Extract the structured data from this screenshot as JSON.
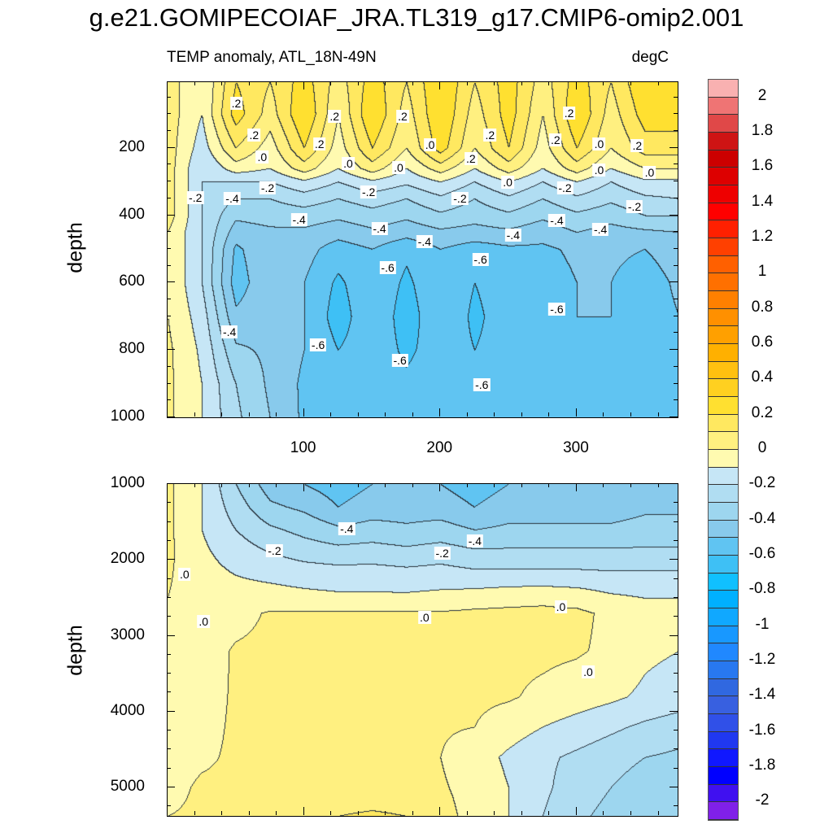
{
  "title": "g.e21.GOMIPECOIAF_JRA.TL319_g17.CMIP6-omip2.001",
  "subtitle_left": "TEMP anomaly, ATL_18N-49N",
  "subtitle_right": "degC",
  "chart_data": {
    "type": "heatmap",
    "title": "g.e21.GOMIPECOIAF_JRA.TL319_g17.CMIP6-omip2.001",
    "variable": "TEMP anomaly, ATL_18N-49N",
    "units": "degC",
    "colorbar": {
      "tick_labels": [
        "2",
        "1.8",
        "1.6",
        "1.4",
        "1.2",
        "1",
        "0.8",
        "0.6",
        "0.4",
        "0.2",
        "0",
        "-0.2",
        "-0.4",
        "-0.6",
        "-0.8",
        "-1",
        "-1.2",
        "-1.4",
        "-1.6",
        "-1.8",
        "-2"
      ],
      "range": [
        -2,
        2
      ],
      "interval": 0.1,
      "colors_top_to_bottom": [
        "#F9B1B1",
        "#EF7474",
        "#E04848",
        "#CE1414",
        "#CC0000",
        "#DD0000",
        "#EE0000",
        "#FF0000",
        "#FF2000",
        "#FF4000",
        "#FF6000",
        "#FF7000",
        "#FF8000",
        "#FF9000",
        "#FFA000",
        "#FFB000",
        "#FFC010",
        "#FFD020",
        "#FFE030",
        "#FFE860",
        "#FFF080",
        "#FFFAB0",
        "#C6E6F6",
        "#B0DDF2",
        "#9DD6EF",
        "#88CAEC",
        "#60C4F2",
        "#3EC0F5",
        "#10C0FF",
        "#00B0FF",
        "#10A8FF",
        "#1898FF",
        "#2088FF",
        "#2878F0",
        "#3068E0",
        "#3860E0",
        "#3050E8",
        "#2038F0",
        "#1018FF",
        "#0000FF",
        "#4010F0",
        "#8020E8"
      ]
    },
    "panels": [
      {
        "ylabel": "depth",
        "xlim": [
          0,
          374
        ],
        "ylim": [
          5,
          1000
        ],
        "yticks": [
          200,
          400,
          600,
          800,
          1000
        ],
        "ytick_labels": [
          "200",
          "400",
          "600",
          "800",
          "1000"
        ],
        "xticks": [
          100,
          200,
          300
        ],
        "xtick_labels": [
          "100",
          "200",
          "300"
        ],
        "x": [
          0,
          25,
          50,
          75,
          100,
          125,
          150,
          175,
          200,
          225,
          250,
          275,
          300,
          325,
          350,
          375
        ],
        "depth": [
          5,
          100,
          200,
          260,
          300,
          350,
          400,
          450,
          500,
          600,
          700,
          800,
          900,
          1000
        ],
        "values": [
          [
            0.05,
            -0.1,
            0.2,
            0.1,
            0.25,
            0.05,
            0.25,
            0.1,
            0.3,
            0.1,
            0.25,
            0.05,
            0.25,
            0.1,
            0.3,
            0.3
          ],
          [
            0.05,
            -0.1,
            0.25,
            0.05,
            0.3,
            0.0,
            0.3,
            0.05,
            0.3,
            0.05,
            0.25,
            0.0,
            0.3,
            0.05,
            0.25,
            0.25
          ],
          [
            0.05,
            -0.15,
            0.1,
            -0.05,
            0.2,
            -0.05,
            0.2,
            0.0,
            0.25,
            0.0,
            0.2,
            -0.05,
            0.2,
            0.0,
            0.15,
            0.15
          ],
          [
            0.05,
            -0.2,
            -0.05,
            -0.1,
            0.05,
            -0.1,
            0.05,
            -0.1,
            0.05,
            -0.1,
            0.05,
            -0.1,
            0.05,
            -0.1,
            0.0,
            0.0
          ],
          [
            0.05,
            -0.2,
            -0.2,
            -0.2,
            -0.12,
            -0.2,
            -0.12,
            -0.18,
            -0.1,
            -0.2,
            -0.1,
            -0.2,
            -0.1,
            -0.2,
            -0.12,
            -0.12
          ],
          [
            0.05,
            -0.2,
            -0.3,
            -0.3,
            -0.25,
            -0.3,
            -0.25,
            -0.3,
            -0.22,
            -0.3,
            -0.22,
            -0.3,
            -0.22,
            -0.28,
            -0.22,
            -0.2
          ],
          [
            0.05,
            -0.2,
            -0.38,
            -0.36,
            -0.35,
            -0.38,
            -0.34,
            -0.38,
            -0.32,
            -0.36,
            -0.32,
            -0.38,
            -0.32,
            -0.36,
            -0.3,
            -0.3
          ],
          [
            0.0,
            -0.2,
            -0.45,
            -0.42,
            -0.42,
            -0.46,
            -0.42,
            -0.46,
            -0.42,
            -0.44,
            -0.42,
            -0.46,
            -0.4,
            -0.44,
            -0.42,
            -0.4
          ],
          [
            0.0,
            -0.2,
            -0.52,
            -0.42,
            -0.46,
            -0.55,
            -0.5,
            -0.58,
            -0.5,
            -0.55,
            -0.52,
            -0.52,
            -0.48,
            -0.48,
            -0.5,
            -0.45
          ],
          [
            0.0,
            -0.2,
            -0.55,
            -0.42,
            -0.5,
            -0.62,
            -0.52,
            -0.62,
            -0.52,
            -0.6,
            -0.55,
            -0.55,
            -0.5,
            -0.5,
            -0.55,
            -0.48
          ],
          [
            0.0,
            -0.15,
            -0.48,
            -0.42,
            -0.5,
            -0.65,
            -0.52,
            -0.65,
            -0.52,
            -0.62,
            -0.55,
            -0.58,
            -0.5,
            -0.5,
            -0.55,
            -0.5
          ],
          [
            0.02,
            -0.12,
            -0.38,
            -0.42,
            -0.5,
            -0.6,
            -0.54,
            -0.62,
            -0.55,
            -0.6,
            -0.56,
            -0.56,
            -0.52,
            -0.52,
            -0.55,
            -0.5
          ],
          [
            0.02,
            -0.1,
            -0.3,
            -0.42,
            -0.52,
            -0.58,
            -0.55,
            -0.58,
            -0.55,
            -0.58,
            -0.55,
            -0.55,
            -0.52,
            -0.52,
            -0.52,
            -0.5
          ],
          [
            0.02,
            -0.1,
            -0.28,
            -0.4,
            -0.52,
            -0.55,
            -0.55,
            -0.55,
            -0.55,
            -0.56,
            -0.55,
            -0.55,
            -0.52,
            -0.52,
            -0.52,
            -0.5
          ]
        ],
        "contour_labels": [
          {
            "text": ".2",
            "x": 51,
            "d": 69
          },
          {
            "text": ".2",
            "x": 123,
            "d": 110
          },
          {
            "text": ".2",
            "x": 173,
            "d": 110
          },
          {
            "text": ".2",
            "x": 295,
            "d": 100
          },
          {
            "text": ".2",
            "x": 237,
            "d": 164
          },
          {
            "text": ".2",
            "x": 64,
            "d": 164
          },
          {
            "text": ".2",
            "x": 112,
            "d": 190
          },
          {
            "text": ".2",
            "x": 285,
            "d": 178
          },
          {
            "text": ".0",
            "x": 70,
            "d": 229
          },
          {
            "text": ".0",
            "x": 133,
            "d": 248
          },
          {
            "text": ".0",
            "x": 193,
            "d": 193
          },
          {
            "text": ".0",
            "x": 317,
            "d": 190
          },
          {
            "text": ".2",
            "x": 223,
            "d": 234
          },
          {
            "text": ".2",
            "x": 345,
            "d": 195
          },
          {
            "text": ".0",
            "x": 170,
            "d": 260
          },
          {
            "text": ".0",
            "x": 250,
            "d": 304
          },
          {
            "text": ".0",
            "x": 317,
            "d": 268
          },
          {
            "text": ".0",
            "x": 354,
            "d": 275
          },
          {
            "text": "-.2",
            "x": 21,
            "d": 350
          },
          {
            "text": "-.4",
            "x": 48,
            "d": 353
          },
          {
            "text": "-.2",
            "x": 74,
            "d": 321
          },
          {
            "text": "-.2",
            "x": 148,
            "d": 333
          },
          {
            "text": "-.2",
            "x": 215,
            "d": 353
          },
          {
            "text": "-.2",
            "x": 292,
            "d": 321
          },
          {
            "text": "-.2",
            "x": 343,
            "d": 377
          },
          {
            "text": "-.4",
            "x": 97,
            "d": 416
          },
          {
            "text": "-.4",
            "x": 156,
            "d": 442
          },
          {
            "text": "-.4",
            "x": 189,
            "d": 481
          },
          {
            "text": "-.4",
            "x": 254,
            "d": 462
          },
          {
            "text": "-.4",
            "x": 286,
            "d": 418
          },
          {
            "text": "-.4",
            "x": 318,
            "d": 445
          },
          {
            "text": "-.6",
            "x": 162,
            "d": 559
          },
          {
            "text": "-.6",
            "x": 230,
            "d": 535
          },
          {
            "text": "-.6",
            "x": 286,
            "d": 682
          },
          {
            "text": "-.4",
            "x": 46,
            "d": 748
          },
          {
            "text": "-.6",
            "x": 111,
            "d": 787
          },
          {
            "text": "-.6",
            "x": 171,
            "d": 833
          },
          {
            "text": "-.6",
            "x": 231,
            "d": 905
          }
        ]
      },
      {
        "ylabel": "depth",
        "xlim": [
          0,
          374
        ],
        "ylim": [
          1000,
          5375
        ],
        "yticks": [
          1000,
          2000,
          3000,
          4000,
          5000
        ],
        "ytick_labels": [
          "1000",
          "2000",
          "3000",
          "4000",
          "5000"
        ],
        "xticks": [
          100,
          200,
          300
        ],
        "xtick_labels": [],
        "x": [
          0,
          25,
          50,
          75,
          100,
          125,
          150,
          175,
          200,
          225,
          250,
          275,
          300,
          325,
          350,
          375
        ],
        "depth": [
          1000,
          1300,
          1600,
          1900,
          2200,
          2500,
          2700,
          3200,
          3800,
          4200,
          4600,
          5000,
          5375
        ],
        "values": [
          [
            0.02,
            -0.1,
            -0.3,
            -0.45,
            -0.5,
            -0.55,
            -0.5,
            -0.5,
            -0.5,
            -0.55,
            -0.5,
            -0.5,
            -0.5,
            -0.5,
            -0.45,
            -0.45
          ],
          [
            0.02,
            -0.1,
            -0.25,
            -0.38,
            -0.42,
            -0.5,
            -0.45,
            -0.45,
            -0.45,
            -0.5,
            -0.45,
            -0.45,
            -0.45,
            -0.45,
            -0.42,
            -0.42
          ],
          [
            0.02,
            -0.1,
            -0.2,
            -0.28,
            -0.33,
            -0.38,
            -0.36,
            -0.38,
            -0.36,
            -0.4,
            -0.38,
            -0.38,
            -0.38,
            -0.38,
            -0.36,
            -0.36
          ],
          [
            0.02,
            -0.08,
            -0.15,
            -0.2,
            -0.24,
            -0.26,
            -0.25,
            -0.27,
            -0.25,
            -0.28,
            -0.28,
            -0.28,
            -0.28,
            -0.28,
            -0.28,
            -0.28
          ],
          [
            0.01,
            -0.06,
            -0.1,
            -0.12,
            -0.14,
            -0.15,
            -0.15,
            -0.16,
            -0.15,
            -0.17,
            -0.17,
            -0.17,
            -0.17,
            -0.18,
            -0.18,
            -0.18
          ],
          [
            0.0,
            -0.05,
            -0.06,
            -0.06,
            -0.07,
            -0.08,
            -0.08,
            -0.08,
            -0.07,
            -0.05,
            -0.03,
            -0.02,
            -0.04,
            -0.08,
            -0.1,
            -0.1
          ],
          [
            -0.02,
            -0.04,
            -0.03,
            0.01,
            0.01,
            0.01,
            0.01,
            0.01,
            0.01,
            0.02,
            0.02,
            0.02,
            0.02,
            -0.02,
            -0.08,
            -0.1
          ],
          [
            -0.03,
            -0.04,
            0.01,
            0.02,
            0.02,
            0.02,
            0.02,
            0.02,
            0.02,
            0.02,
            0.02,
            0.02,
            0.01,
            -0.02,
            -0.08,
            -0.1
          ],
          [
            -0.03,
            -0.03,
            0.01,
            0.02,
            0.02,
            0.02,
            0.02,
            0.02,
            0.02,
            0.02,
            0.01,
            -0.02,
            -0.05,
            -0.08,
            -0.12,
            -0.15
          ],
          [
            -0.03,
            -0.02,
            0.01,
            0.02,
            0.02,
            0.02,
            0.02,
            0.02,
            0.01,
            0.0,
            -0.05,
            -0.1,
            -0.14,
            -0.18,
            -0.22,
            -0.25
          ],
          [
            -0.03,
            -0.01,
            0.01,
            0.02,
            0.02,
            0.02,
            0.02,
            0.02,
            0.0,
            -0.05,
            -0.12,
            -0.18,
            -0.22,
            -0.26,
            -0.3,
            -0.32
          ],
          [
            -0.02,
            0.01,
            0.01,
            0.02,
            0.02,
            0.02,
            0.02,
            0.02,
            0.01,
            -0.03,
            -0.1,
            -0.18,
            -0.25,
            -0.3,
            -0.35,
            -0.38
          ],
          [
            0.0,
            0.01,
            0.02,
            0.05,
            0.08,
            0.1,
            0.12,
            0.1,
            0.03,
            -0.03,
            -0.1,
            -0.2,
            -0.28,
            -0.33,
            -0.38,
            -0.4
          ]
        ],
        "contour_labels": [
          {
            "text": ".0",
            "x": 13,
            "d": 2198
          },
          {
            "text": ".0",
            "x": 27,
            "d": 2818
          },
          {
            "text": ".0",
            "x": 189,
            "d": 2765
          },
          {
            "text": ".0",
            "x": 289,
            "d": 2626
          },
          {
            "text": ".0",
            "x": 309,
            "d": 3492
          },
          {
            "text": "-.2",
            "x": 79,
            "d": 1888
          },
          {
            "text": "-.4",
            "x": 132,
            "d": 1599
          },
          {
            "text": "-.2",
            "x": 202,
            "d": 1920
          },
          {
            "text": "-.4",
            "x": 226,
            "d": 1759
          }
        ]
      }
    ]
  }
}
